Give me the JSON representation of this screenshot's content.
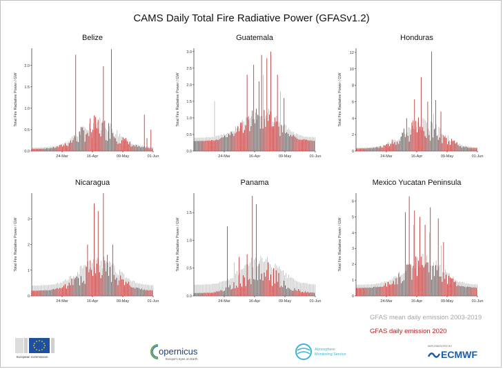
{
  "title": "CAMS Daily Total Fire Radiative Power (GFASv1.2)",
  "legend": {
    "mean_label": "GFAS mean daily emission 2003-2019",
    "daily_label": "GFAS daily emission 2020",
    "mean_color": "#a6a6a6",
    "daily_color": "#b22222"
  },
  "logos": {
    "eu": "European Commission",
    "copernicus_name": "opernicus",
    "copernicus_tagline": "Europe's eyes on Earth",
    "ams_line1": "Atmosphere",
    "ams_line2": "Monitoring Service",
    "ecmwf_small": "IMPLEMENTED BY",
    "ecmwf_name": "ECMWF"
  },
  "chart_data": [
    {
      "type": "bar",
      "title": "Belize",
      "ylabel": "Total Fire Radiative Power / GW",
      "ylim": [
        0,
        2.4
      ],
      "yticks": [
        "0.0",
        "0.5",
        "1.0",
        "1.5",
        "2.0"
      ],
      "ytick_values": [
        0,
        0.5,
        1.0,
        1.5,
        2.0
      ],
      "xticks": [
        "24-Mar",
        "16-Apr",
        "09-May",
        "01-Jun"
      ],
      "xtick_days": [
        23,
        46,
        69,
        92
      ],
      "xlim_days": [
        0,
        92
      ],
      "series": [
        {
          "name": "GFAS mean daily emission 2003-2019",
          "color": "#a6a6a6"
        },
        {
          "name": "GFAS daily emission 2020",
          "color": "#b22222"
        }
      ],
      "peaks_2020": [
        [
          33,
          2.25
        ],
        [
          43,
          0.35
        ],
        [
          48,
          0.8
        ],
        [
          54,
          1.98
        ],
        [
          60,
          2.38
        ],
        [
          85,
          0.85
        ],
        [
          87,
          0.3
        ],
        [
          90,
          0.5
        ]
      ],
      "mean_peaks": [
        [
          45,
          0.3
        ],
        [
          62,
          0.3
        ]
      ],
      "baseline_2020": 0.05,
      "baseline_mean": 0.08
    },
    {
      "type": "bar",
      "title": "Guatemala",
      "ylabel": "Total Fire Radiative Power / GW",
      "ylim": [
        0,
        3.1
      ],
      "yticks": [
        "0.0",
        "0.5",
        "1.0",
        "1.5",
        "2.0",
        "2.5",
        "3.0"
      ],
      "ytick_values": [
        0,
        0.5,
        1.0,
        1.5,
        2.0,
        2.5,
        3.0
      ],
      "xticks": [
        "24-Mar",
        "16-Apr",
        "09-May",
        "01-Jun"
      ],
      "xtick_days": [
        23,
        46,
        69,
        92
      ],
      "xlim_days": [
        0,
        92
      ],
      "series": [
        {
          "name": "GFAS mean daily emission 2003-2019",
          "color": "#a6a6a6"
        },
        {
          "name": "GFAS daily emission 2020",
          "color": "#b22222"
        }
      ],
      "peaks_2020": [
        [
          40,
          2.3
        ],
        [
          45,
          2.6
        ],
        [
          49,
          2.1
        ],
        [
          51,
          2.9
        ],
        [
          55,
          2.8
        ],
        [
          58,
          3.0
        ],
        [
          63,
          2.3
        ],
        [
          68,
          1.6
        ]
      ],
      "mean_peaks": [
        [
          15,
          1.5
        ],
        [
          52,
          2.3
        ],
        [
          65,
          1.8
        ]
      ],
      "baseline_2020": 0.3,
      "baseline_mean": 0.4
    },
    {
      "type": "bar",
      "title": "Honduras",
      "ylabel": "Total Fire Radiative Power / GW",
      "ylim": [
        0,
        12.5
      ],
      "yticks": [
        "0",
        "2",
        "4",
        "6",
        "8",
        "10",
        "12"
      ],
      "ytick_values": [
        0,
        2,
        4,
        6,
        8,
        10,
        12
      ],
      "xticks": [
        "24-Mar",
        "16-Apr",
        "09-May",
        "01-Jun"
      ],
      "xtick_days": [
        23,
        46,
        69,
        92
      ],
      "xlim_days": [
        0,
        92
      ],
      "series": [
        {
          "name": "GFAS mean daily emission 2003-2019",
          "color": "#a6a6a6"
        },
        {
          "name": "GFAS daily emission 2020",
          "color": "#b22222"
        }
      ],
      "peaks_2020": [
        [
          38,
          4.0
        ],
        [
          44,
          6.3
        ],
        [
          49,
          9.0
        ],
        [
          54,
          6.0
        ],
        [
          57,
          12.1
        ],
        [
          60,
          6.2
        ],
        [
          64,
          4.8
        ]
      ],
      "mean_peaks": [
        [
          50,
          4.0
        ],
        [
          58,
          4.5
        ]
      ],
      "baseline_2020": 0.3,
      "baseline_mean": 0.4
    },
    {
      "type": "bar",
      "title": "Nicaragua",
      "ylabel": "Total Fire Radiative Power / GW",
      "ylim": [
        0,
        4.0
      ],
      "yticks": [
        "0",
        "1",
        "2",
        "3"
      ],
      "ytick_values": [
        0,
        1,
        2,
        3
      ],
      "xticks": [
        "24-Mar",
        "16-Apr",
        "09-May",
        "01-Jun"
      ],
      "xtick_days": [
        23,
        46,
        69,
        92
      ],
      "xlim_days": [
        0,
        92
      ],
      "series": [
        {
          "name": "GFAS mean daily emission 2003-2019",
          "color": "#a6a6a6"
        },
        {
          "name": "GFAS daily emission 2020",
          "color": "#b22222"
        }
      ],
      "peaks_2020": [
        [
          42,
          2.0
        ],
        [
          47,
          3.6
        ],
        [
          50,
          3.3
        ],
        [
          54,
          4.0
        ],
        [
          57,
          1.6
        ],
        [
          61,
          2.0
        ]
      ],
      "mean_peaks": [
        [
          48,
          1.4
        ],
        [
          60,
          1.2
        ]
      ],
      "baseline_2020": 0.2,
      "baseline_mean": 0.4
    },
    {
      "type": "bar",
      "title": "Panama",
      "ylabel": "Total Fire Radiative Power / GW",
      "ylim": [
        0,
        1.85
      ],
      "yticks": [
        "0.0",
        "0.5",
        "1.0",
        "1.5"
      ],
      "ytick_values": [
        0,
        0.5,
        1.0,
        1.5
      ],
      "xticks": [
        "24-Mar",
        "16-Apr",
        "09-May",
        "01-Jun"
      ],
      "xtick_days": [
        23,
        46,
        69,
        92
      ],
      "xlim_days": [
        0,
        92
      ],
      "series": [
        {
          "name": "GFAS mean daily emission 2003-2019",
          "color": "#a6a6a6"
        },
        {
          "name": "GFAS daily emission 2020",
          "color": "#b22222"
        }
      ],
      "peaks_2020": [
        [
          25,
          1.25
        ],
        [
          34,
          0.7
        ],
        [
          40,
          0.75
        ],
        [
          44,
          1.8
        ],
        [
          47,
          1.65
        ],
        [
          60,
          0.5
        ]
      ],
      "mean_peaks": [
        [
          30,
          0.6
        ],
        [
          42,
          0.6
        ]
      ],
      "baseline_2020": 0.05,
      "baseline_mean": 0.2
    },
    {
      "type": "bar",
      "title": "Mexico Yucatan Peninsula",
      "ylabel": "Total Fire Radiative Power / GW",
      "ylim": [
        0,
        6.5
      ],
      "yticks": [
        "0",
        "1",
        "2",
        "3",
        "4",
        "5",
        "6"
      ],
      "ytick_values": [
        0,
        1,
        2,
        3,
        4,
        5,
        6
      ],
      "xticks": [
        "24-Mar",
        "16-Apr",
        "09-May",
        "01-Jun"
      ],
      "xtick_days": [
        23,
        46,
        69,
        92
      ],
      "xlim_days": [
        0,
        92
      ],
      "series": [
        {
          "name": "GFAS mean daily emission 2003-2019",
          "color": "#a6a6a6"
        },
        {
          "name": "GFAS daily emission 2020",
          "color": "#b22222"
        }
      ],
      "peaks_2020": [
        [
          37,
          5.3
        ],
        [
          40,
          6.3
        ],
        [
          44,
          5.4
        ],
        [
          48,
          5.0
        ],
        [
          52,
          4.5
        ],
        [
          56,
          5.6
        ],
        [
          62,
          4.9
        ],
        [
          66,
          3.4
        ],
        [
          73,
          1.1
        ]
      ],
      "mean_peaks": [
        [
          43,
          4.5
        ],
        [
          55,
          4.0
        ],
        [
          64,
          3.2
        ]
      ],
      "baseline_2020": 0.5,
      "baseline_mean": 0.7
    }
  ]
}
